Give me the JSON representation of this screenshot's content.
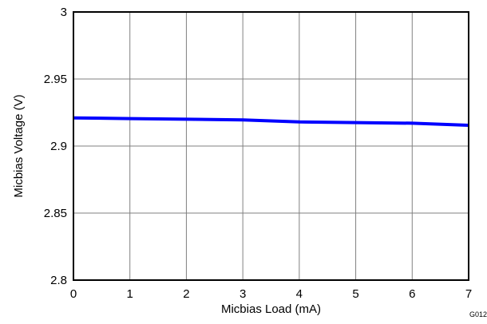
{
  "chart_data": {
    "type": "line",
    "title": "",
    "xlabel": "Micbias Load (mA)",
    "ylabel": "Micbias Voltage (V)",
    "xlim": [
      0,
      7
    ],
    "ylim": [
      2.8,
      3.0
    ],
    "x_ticks": [
      0,
      1,
      2,
      3,
      4,
      5,
      6,
      7
    ],
    "x_tick_labels": [
      "0",
      "1",
      "2",
      "3",
      "4",
      "5",
      "6",
      "7"
    ],
    "y_ticks": [
      2.8,
      2.85,
      2.9,
      2.95,
      3.0
    ],
    "y_tick_labels": [
      "2.8",
      "2.85",
      "2.9",
      "2.95",
      "3"
    ],
    "grid": true,
    "series": [
      {
        "color": "#0000ff",
        "x": [
          0,
          1,
          2,
          3,
          4,
          5,
          6,
          7
        ],
        "y": [
          2.921,
          2.9205,
          2.92,
          2.9195,
          2.918,
          2.9175,
          2.917,
          2.9155
        ]
      }
    ]
  },
  "figure_id": "G012"
}
